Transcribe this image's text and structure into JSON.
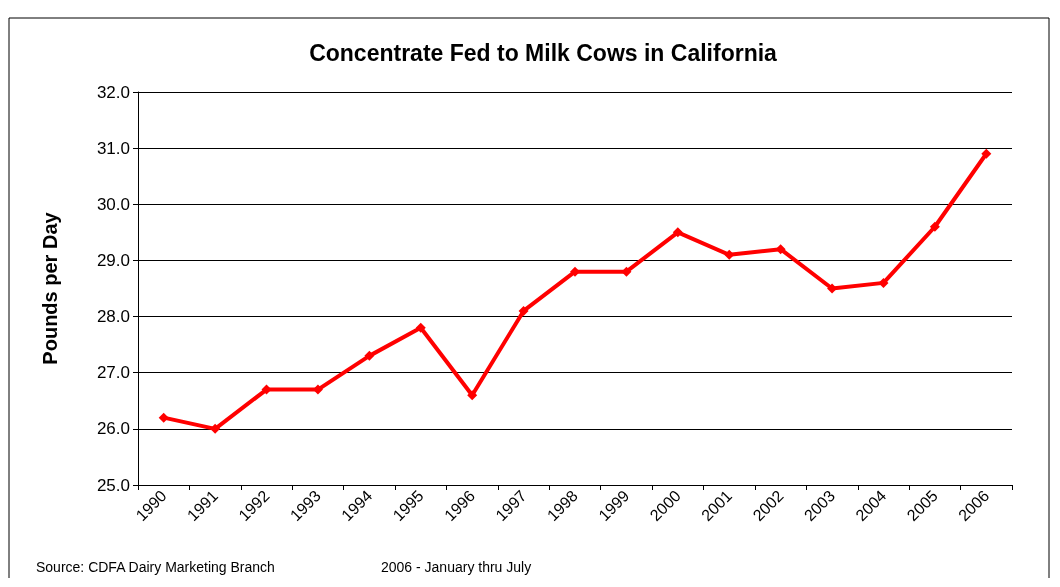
{
  "chart_data": {
    "type": "line",
    "title": "Concentrate Fed to Milk Cows in California",
    "ylabel": "Pounds per Day",
    "categories": [
      "1990",
      "1991",
      "1992",
      "1993",
      "1994",
      "1995",
      "1996",
      "1997",
      "1998",
      "1999",
      "2000",
      "2001",
      "2002",
      "2003",
      "2004",
      "2005",
      "2006"
    ],
    "series": [
      {
        "color": "#ff0000",
        "values": [
          26.2,
          26.0,
          26.7,
          26.7,
          27.3,
          27.8,
          26.6,
          28.1,
          28.8,
          28.8,
          29.5,
          29.1,
          29.2,
          28.5,
          28.6,
          29.6,
          30.9
        ]
      }
    ],
    "ylim": [
      25,
      32
    ],
    "yticks": [
      {
        "value": 25,
        "label": "25.0"
      },
      {
        "value": 26,
        "label": "26.0"
      },
      {
        "value": 27,
        "label": "27.0"
      },
      {
        "value": 28,
        "label": "28.0"
      },
      {
        "value": 29,
        "label": "29.0"
      },
      {
        "value": 30,
        "label": "30.0"
      },
      {
        "value": 31,
        "label": "31.0"
      },
      {
        "value": 32,
        "label": "32.0"
      }
    ],
    "grid": "y",
    "marker": "diamond",
    "line_style": "solid",
    "annotations": [
      "Source: CDFA Dairy Marketing Branch",
      "2006 - January thru July"
    ]
  }
}
